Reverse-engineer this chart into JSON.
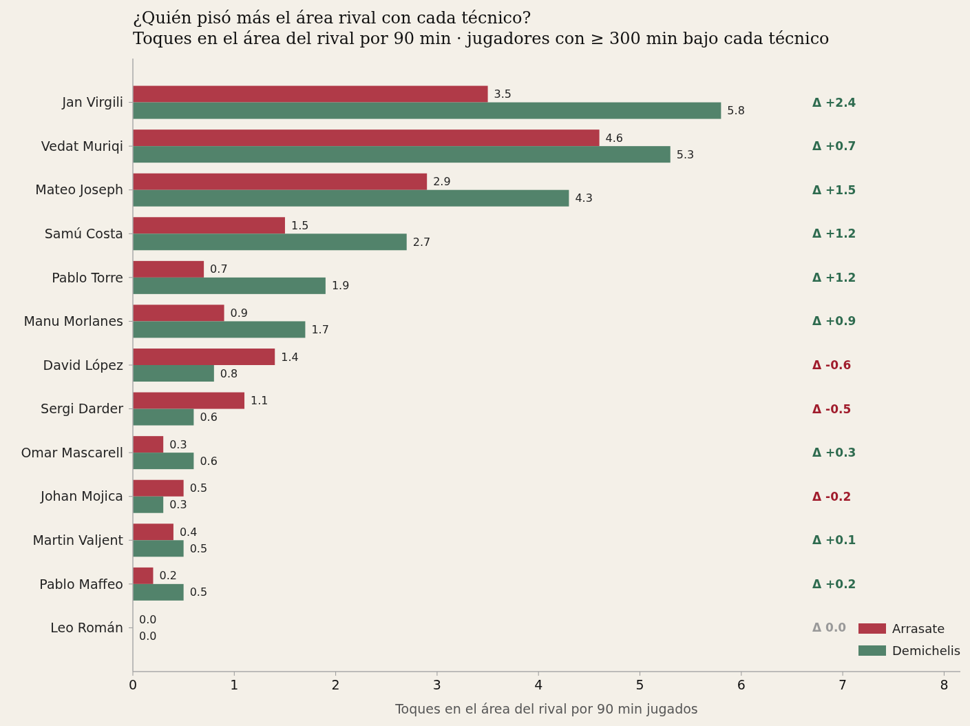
{
  "chart_data": {
    "type": "bar",
    "orientation": "horizontal",
    "title": "¿Quién pisó más el área rival con cada técnico?",
    "subtitle": "Toques en el área del rival por 90 min · jugadores con ≥ 300 min bajo cada técnico",
    "xlabel": "Toques en el área del rival por 90 min jugados",
    "categories": [
      "Jan Virgili",
      "Vedat Muriqi",
      "Mateo Joseph",
      "Samú Costa",
      "Pablo Torre",
      "Manu Morlanes",
      "David López",
      "Sergi Darder",
      "Omar Mascarell",
      "Johan Mojica",
      "Martin Valjent",
      "Pablo Maffeo",
      "Leo Román"
    ],
    "series": [
      {
        "name": "Arrasate",
        "color": "#b03a48",
        "values": [
          3.5,
          4.6,
          2.9,
          1.5,
          0.7,
          0.9,
          1.4,
          1.1,
          0.3,
          0.5,
          0.4,
          0.2,
          0
        ],
        "value_labels": [
          "3.5",
          "4.6",
          "2.9",
          "1.5",
          "0.7",
          "0.9",
          "1.4",
          "1.1",
          "0.3",
          "0.5",
          "0.4",
          "0.2",
          "0.0"
        ]
      },
      {
        "name": "Demichelis",
        "color": "#52836b",
        "values": [
          5.8,
          5.3,
          4.3,
          2.7,
          1.9,
          1.7,
          0.8,
          0.6,
          0.6,
          0.3,
          0.5,
          0.5,
          0
        ],
        "value_labels": [
          "5.8",
          "5.3",
          "4.3",
          "2.7",
          "1.9",
          "1.7",
          "0.8",
          "0.6",
          "0.6",
          "0.3",
          "0.5",
          "0.5",
          "0.0"
        ]
      }
    ],
    "xlim": [
      0,
      8.16
    ],
    "xticks": [
      0,
      1,
      2,
      3,
      4,
      5,
      6,
      7,
      8
    ],
    "legend": "bottom right",
    "annotations": [
      "Δ +2.4",
      "Δ +0.7",
      "Δ +1.5",
      "Δ +1.2",
      "Δ +1.2",
      "Δ +0.9",
      "Δ -0.6",
      "Δ -0.5",
      "Δ +0.3",
      "Δ -0.2",
      "Δ +0.1",
      "Δ +0.2",
      "Δ 0.0"
    ]
  }
}
